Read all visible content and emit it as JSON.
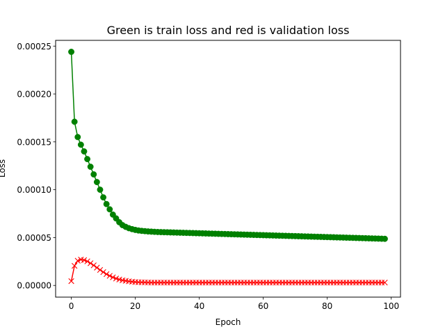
{
  "chart_data": {
    "type": "line",
    "title": "Green is train loss and red is validation loss",
    "xlabel": "Epoch",
    "ylabel": "Loss",
    "xlim": [
      -4.9,
      102.9
    ],
    "ylim": [
      -1.22e-05,
      0.000256
    ],
    "x_ticks": [
      0,
      20,
      40,
      60,
      80,
      100
    ],
    "x_tick_labels": [
      "0",
      "20",
      "40",
      "60",
      "80",
      "100"
    ],
    "y_ticks": [
      0,
      5e-05,
      0.0001,
      0.00015,
      0.0002,
      0.00025
    ],
    "y_tick_labels": [
      "0.00000",
      "0.00005",
      "0.00010",
      "0.00015",
      "0.00020",
      "0.00025"
    ],
    "grid": false,
    "x": [
      0,
      1,
      2,
      3,
      4,
      5,
      6,
      7,
      8,
      9,
      10,
      11,
      12,
      13,
      14,
      15,
      16,
      17,
      18,
      19,
      20,
      21,
      22,
      23,
      24,
      25,
      26,
      27,
      28,
      29,
      30,
      31,
      32,
      33,
      34,
      35,
      36,
      37,
      38,
      39,
      40,
      41,
      42,
      43,
      44,
      45,
      46,
      47,
      48,
      49,
      50,
      51,
      52,
      53,
      54,
      55,
      56,
      57,
      58,
      59,
      60,
      61,
      62,
      63,
      64,
      65,
      66,
      67,
      68,
      69,
      70,
      71,
      72,
      73,
      74,
      75,
      76,
      77,
      78,
      79,
      80,
      81,
      82,
      83,
      84,
      85,
      86,
      87,
      88,
      89,
      90,
      91,
      92,
      93,
      94,
      95,
      96,
      97,
      98
    ],
    "series": [
      {
        "color": "#008000",
        "marker": "circle",
        "values": [
          0.000244,
          0.000171,
          0.000155,
          0.000147,
          0.00014,
          0.000132,
          0.000124,
          0.000116,
          0.000108,
          0.0001,
          9.2e-05,
          8.5e-05,
          7.95e-05,
          7.4e-05,
          7e-05,
          6.6e-05,
          6.3e-05,
          6.12e-05,
          5.98e-05,
          5.88e-05,
          5.8e-05,
          5.74e-05,
          5.7e-05,
          5.67e-05,
          5.64e-05,
          5.62e-05,
          5.6e-05,
          5.58e-05,
          5.57e-05,
          5.56e-05,
          5.55e-05,
          5.54e-05,
          5.53e-05,
          5.52e-05,
          5.51e-05,
          5.5e-05,
          5.49e-05,
          5.48e-05,
          5.47e-05,
          5.46e-05,
          5.45e-05,
          5.44e-05,
          5.43e-05,
          5.42e-05,
          5.41e-05,
          5.4e-05,
          5.39e-05,
          5.38e-05,
          5.37e-05,
          5.36e-05,
          5.35e-05,
          5.34e-05,
          5.33e-05,
          5.32e-05,
          5.31e-05,
          5.3e-05,
          5.29e-05,
          5.28e-05,
          5.27e-05,
          5.26e-05,
          5.25e-05,
          5.24e-05,
          5.23e-05,
          5.22e-05,
          5.21e-05,
          5.2e-05,
          5.19e-05,
          5.18e-05,
          5.17e-05,
          5.16e-05,
          5.15e-05,
          5.14e-05,
          5.13e-05,
          5.12e-05,
          5.11e-05,
          5.1e-05,
          5.09e-05,
          5.08e-05,
          5.07e-05,
          5.06e-05,
          5.05e-05,
          5.04e-05,
          5.03e-05,
          5.02e-05,
          5.01e-05,
          5e-05,
          4.99e-05,
          4.98e-05,
          4.97e-05,
          4.96e-05,
          4.95e-05,
          4.94e-05,
          4.93e-05,
          4.92e-05,
          4.91e-05,
          4.9e-05,
          4.89e-05,
          4.88e-05,
          4.87e-05
        ]
      },
      {
        "color": "#ff0000",
        "marker": "x",
        "values": [
          4.5e-06,
          2.05e-05,
          2.58e-05,
          2.7e-05,
          2.65e-05,
          2.52e-05,
          2.32e-05,
          2.1e-05,
          1.86e-05,
          1.62e-05,
          1.39e-05,
          1.18e-05,
          1e-05,
          8.5e-06,
          7.2e-06,
          6.2e-06,
          5.4e-06,
          4.8e-06,
          4.3e-06,
          3.9e-06,
          3.6e-06,
          3.4e-06,
          3.3e-06,
          3.2e-06,
          3.1e-06,
          3e-06,
          3e-06,
          3e-06,
          3e-06,
          3e-06,
          3e-06,
          3e-06,
          3e-06,
          3e-06,
          3e-06,
          3e-06,
          3e-06,
          3e-06,
          3e-06,
          3e-06,
          3e-06,
          3e-06,
          3e-06,
          3e-06,
          3e-06,
          3e-06,
          3e-06,
          3e-06,
          3e-06,
          3e-06,
          3e-06,
          3e-06,
          3e-06,
          3e-06,
          3e-06,
          3e-06,
          3e-06,
          3e-06,
          3e-06,
          3e-06,
          3e-06,
          3e-06,
          3e-06,
          3e-06,
          3e-06,
          3e-06,
          3e-06,
          3e-06,
          3e-06,
          3e-06,
          3e-06,
          3e-06,
          3e-06,
          3e-06,
          3e-06,
          3e-06,
          3e-06,
          3e-06,
          3e-06,
          3e-06,
          3e-06,
          3e-06,
          3e-06,
          3e-06,
          3e-06,
          3e-06,
          3e-06,
          3e-06,
          3e-06,
          3e-06,
          3e-06,
          3e-06,
          3e-06,
          3e-06,
          3e-06,
          3e-06,
          3e-06,
          3e-06,
          3e-06
        ]
      }
    ]
  }
}
